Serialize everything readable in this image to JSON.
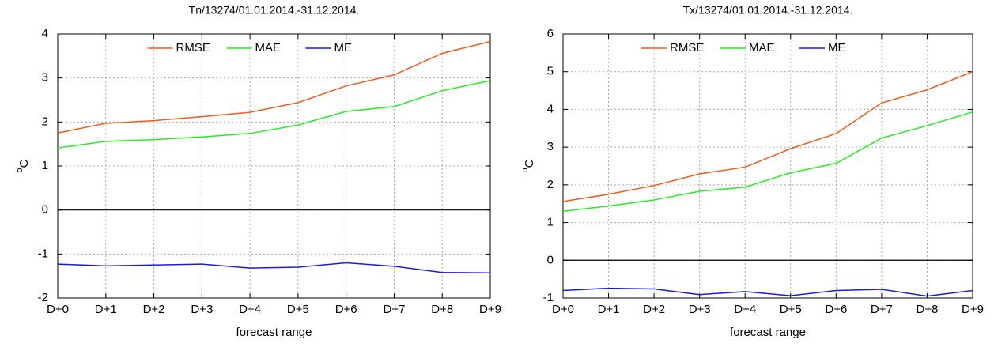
{
  "chart_data": [
    {
      "type": "line",
      "title": "Tn/13274/01.01.2014.-31.12.2014.",
      "xlabel": "forecast range",
      "ylabel_degree": "o",
      "ylabel": "C",
      "categories": [
        "D+0",
        "D+1",
        "D+2",
        "D+3",
        "D+4",
        "D+5",
        "D+6",
        "D+7",
        "D+8",
        "D+9"
      ],
      "ylim": [
        -2,
        4
      ],
      "yticks": [
        -2,
        -1,
        0,
        1,
        2,
        3,
        4
      ],
      "grid": true,
      "legend": "top",
      "series": [
        {
          "name": "RMSE",
          "color": "#f05a1e",
          "values": [
            1.75,
            1.97,
            2.03,
            2.12,
            2.22,
            2.44,
            2.82,
            3.07,
            3.56,
            3.83
          ]
        },
        {
          "name": "MAE",
          "color": "#22ee22",
          "values": [
            1.41,
            1.56,
            1.6,
            1.66,
            1.74,
            1.93,
            2.24,
            2.35,
            2.71,
            2.94
          ]
        },
        {
          "name": "ME",
          "color": "#1a1ae0",
          "values": [
            -1.23,
            -1.27,
            -1.25,
            -1.23,
            -1.32,
            -1.3,
            -1.2,
            -1.28,
            -1.42,
            -1.43
          ]
        }
      ]
    },
    {
      "type": "line",
      "title": "Tx/13274/01.01.2014.-31.12.2014.",
      "xlabel": "forecast range",
      "ylabel_degree": "o",
      "ylabel": "C",
      "categories": [
        "D+0",
        "D+1",
        "D+2",
        "D+3",
        "D+4",
        "D+5",
        "D+6",
        "D+7",
        "D+8",
        "D+9"
      ],
      "ylim": [
        -1,
        6
      ],
      "yticks": [
        -1,
        0,
        1,
        2,
        3,
        4,
        5,
        6
      ],
      "grid": true,
      "legend": "top",
      "series": [
        {
          "name": "RMSE",
          "color": "#f05a1e",
          "values": [
            1.56,
            1.75,
            1.98,
            2.29,
            2.47,
            2.96,
            3.36,
            4.17,
            4.52,
            5.0
          ]
        },
        {
          "name": "MAE",
          "color": "#22ee22",
          "values": [
            1.3,
            1.44,
            1.6,
            1.83,
            1.94,
            2.32,
            2.57,
            3.24,
            3.57,
            3.93
          ]
        },
        {
          "name": "ME",
          "color": "#1a1ae0",
          "values": [
            -0.8,
            -0.74,
            -0.76,
            -0.91,
            -0.83,
            -0.94,
            -0.8,
            -0.77,
            -0.95,
            -0.8
          ]
        }
      ]
    }
  ]
}
